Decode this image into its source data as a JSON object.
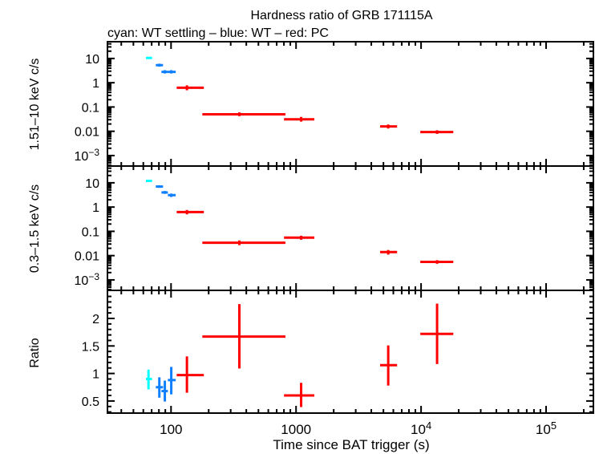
{
  "chart_data": {
    "type": "scatter",
    "title": "Hardness ratio of GRB 171115A",
    "subtitle": "cyan: WT settling – blue: WT – red: PC",
    "xlabel": "Time since BAT trigger (s)",
    "xscale": "log",
    "xlim": [
      31,
      239000
    ],
    "xticks": [
      {
        "v": 100,
        "label": "100"
      },
      {
        "v": 1000,
        "label": "1000"
      },
      {
        "v": 10000,
        "label": "10",
        "sup": "4"
      },
      {
        "v": 100000,
        "label": "10",
        "sup": "5"
      }
    ],
    "colors": {
      "wt_settling": "#00ffff",
      "wt": "#1080ff",
      "pc": "#ff0000"
    },
    "x_points": [
      {
        "mode": "wt_settling",
        "t": 66,
        "tlo": 63,
        "thi": 70.5
      },
      {
        "mode": "wt",
        "t": 80.6,
        "tlo": 75.5,
        "thi": 86.3
      },
      {
        "mode": "wt",
        "t": 89.2,
        "tlo": 83.8,
        "thi": 94.3
      },
      {
        "mode": "wt",
        "t": 100.4,
        "tlo": 94.3,
        "thi": 109
      },
      {
        "mode": "pc",
        "t": 134,
        "tlo": 111,
        "thi": 183
      },
      {
        "mode": "pc",
        "t": 352,
        "tlo": 178,
        "thi": 822
      },
      {
        "mode": "pc",
        "t": 1098,
        "tlo": 801,
        "thi": 1400
      },
      {
        "mode": "pc",
        "t": 5460,
        "tlo": 4700,
        "thi": 6430
      },
      {
        "mode": "pc",
        "t": 13430,
        "tlo": 9860,
        "thi": 18100
      }
    ],
    "panels": [
      {
        "ylabel": "1.51–10 keV c/s",
        "yscale": "log",
        "ylim": [
          0.00037,
          49
        ],
        "yticks": [
          {
            "v": 10,
            "label": "10"
          },
          {
            "v": 1,
            "label": "1"
          },
          {
            "v": 0.1,
            "label": "0.1"
          },
          {
            "v": 0.01,
            "label": "0.01"
          },
          {
            "v": 0.001,
            "label": "10",
            "sup": "−3"
          }
        ],
        "values": [
          10.5,
          5.3,
          2.8,
          2.8,
          0.62,
          0.05,
          0.031,
          0.0158,
          0.0093
        ],
        "ylo": [
          9.5,
          4.6,
          2.4,
          2.4,
          0.49,
          0.042,
          0.025,
          0.013,
          0.0078
        ],
        "yhi": [
          11.6,
          6.1,
          3.3,
          3.3,
          0.78,
          0.06,
          0.039,
          0.019,
          0.011
        ]
      },
      {
        "ylabel": "0.3–1.5 keV c/s",
        "yscale": "log",
        "ylim": [
          0.00037,
          49
        ],
        "yticks": [
          {
            "v": 10,
            "label": "10"
          },
          {
            "v": 1,
            "label": "1"
          },
          {
            "v": 0.1,
            "label": "0.1"
          },
          {
            "v": 0.01,
            "label": "0.01"
          },
          {
            "v": 0.001,
            "label": "10",
            "sup": "−3"
          }
        ],
        "values": [
          12,
          7,
          4,
          3.1,
          0.62,
          0.034,
          0.055,
          0.014,
          0.0055
        ],
        "ylo": [
          10.8,
          6.2,
          3.5,
          2.6,
          0.5,
          0.027,
          0.045,
          0.011,
          0.0046
        ],
        "yhi": [
          13.3,
          7.8,
          4.6,
          3.6,
          0.76,
          0.042,
          0.066,
          0.017,
          0.0065
        ]
      },
      {
        "ylabel": "Ratio",
        "yscale": "linear",
        "ylim": [
          0.28,
          2.51
        ],
        "yticks": [
          {
            "v": 0.5,
            "label": "0.5"
          },
          {
            "v": 1,
            "label": "1"
          },
          {
            "v": 1.5,
            "label": "1.5"
          },
          {
            "v": 2,
            "label": "2"
          }
        ],
        "values": [
          0.9,
          0.75,
          0.68,
          0.88,
          0.97,
          1.67,
          0.6,
          1.15,
          1.72
        ],
        "ylo": [
          0.71,
          0.56,
          0.49,
          0.62,
          0.65,
          1.09,
          0.39,
          0.78,
          1.17
        ],
        "yhi": [
          1.07,
          0.93,
          0.87,
          1.12,
          1.31,
          2.26,
          0.83,
          1.51,
          2.27
        ]
      }
    ]
  }
}
